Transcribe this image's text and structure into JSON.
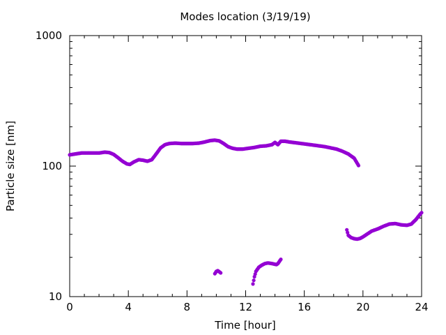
{
  "chart_data": {
    "type": "scatter",
    "title": "Modes location (3/19/19)",
    "xlabel": "Time [hour]",
    "ylabel": "Particle size [nm]",
    "xlim": [
      0,
      24
    ],
    "ylim": [
      10,
      1000
    ],
    "yscale": "log",
    "grid": false,
    "legend": "none",
    "x_ticks": [
      "0",
      "4",
      "8",
      "12",
      "16",
      "20",
      "24"
    ],
    "y_ticks": [
      "10",
      "100",
      "1000"
    ],
    "marker_color": "#9400D3",
    "series": [
      {
        "points": [
          [
            0.0,
            122
          ],
          [
            0.4,
            124
          ],
          [
            0.8,
            126
          ],
          [
            1.2,
            126
          ],
          [
            1.6,
            126
          ],
          [
            2.0,
            126
          ],
          [
            2.4,
            128
          ],
          [
            2.7,
            127
          ],
          [
            3.0,
            123
          ],
          [
            3.3,
            116
          ],
          [
            3.6,
            109
          ],
          [
            3.9,
            104
          ],
          [
            4.1,
            103
          ],
          [
            4.4,
            108
          ],
          [
            4.7,
            112
          ],
          [
            5.0,
            111
          ],
          [
            5.3,
            109
          ],
          [
            5.6,
            112
          ],
          [
            5.9,
            124
          ],
          [
            6.2,
            138
          ],
          [
            6.5,
            146
          ],
          [
            6.8,
            149
          ],
          [
            7.2,
            150
          ],
          [
            7.6,
            149
          ],
          [
            8.0,
            149
          ],
          [
            8.4,
            149
          ],
          [
            8.8,
            150
          ],
          [
            9.2,
            153
          ],
          [
            9.6,
            157
          ],
          [
            9.9,
            158
          ],
          [
            10.2,
            156
          ],
          [
            10.5,
            149
          ],
          [
            10.8,
            141
          ],
          [
            11.1,
            137
          ],
          [
            11.4,
            135
          ],
          [
            11.8,
            135
          ],
          [
            12.2,
            137
          ],
          [
            12.6,
            139
          ],
          [
            13.0,
            142
          ],
          [
            13.4,
            143
          ],
          [
            13.8,
            146
          ],
          [
            14.0,
            152
          ],
          [
            14.2,
            146
          ],
          [
            14.4,
            155
          ],
          [
            14.7,
            155
          ],
          [
            15.0,
            153
          ],
          [
            15.4,
            151
          ],
          [
            15.8,
            149
          ],
          [
            16.2,
            147
          ],
          [
            16.6,
            145
          ],
          [
            17.0,
            143
          ],
          [
            17.4,
            141
          ],
          [
            17.8,
            138
          ],
          [
            18.2,
            135
          ],
          [
            18.6,
            130
          ],
          [
            19.0,
            124
          ],
          [
            19.4,
            115
          ],
          [
            19.7,
            101
          ]
        ]
      },
      {
        "points": [
          [
            9.9,
            15.0
          ],
          [
            10.0,
            15.6
          ],
          [
            10.1,
            15.8
          ],
          [
            10.2,
            15.5
          ],
          [
            10.3,
            15.2
          ]
        ]
      },
      {
        "points": [
          [
            12.5,
            12.5
          ],
          [
            12.6,
            14.2
          ],
          [
            12.7,
            15.6
          ],
          [
            12.9,
            16.8
          ],
          [
            13.1,
            17.4
          ],
          [
            13.3,
            17.9
          ],
          [
            13.5,
            18.1
          ],
          [
            13.7,
            18.0
          ],
          [
            13.9,
            17.8
          ],
          [
            14.1,
            17.6
          ],
          [
            14.2,
            17.9
          ],
          [
            14.3,
            18.6
          ],
          [
            14.4,
            19.3
          ]
        ]
      },
      {
        "points": [
          [
            18.9,
            32.5
          ],
          [
            19.0,
            29.5
          ],
          [
            19.2,
            28.3
          ],
          [
            19.4,
            27.8
          ],
          [
            19.6,
            27.6
          ],
          [
            19.8,
            27.9
          ],
          [
            20.0,
            28.7
          ],
          [
            20.3,
            30.2
          ],
          [
            20.6,
            31.8
          ],
          [
            21.0,
            33.0
          ],
          [
            21.4,
            34.6
          ],
          [
            21.8,
            36.0
          ],
          [
            22.2,
            36.3
          ],
          [
            22.6,
            35.5
          ],
          [
            23.0,
            35.2
          ],
          [
            23.3,
            36.0
          ],
          [
            23.6,
            38.8
          ],
          [
            23.9,
            42.8
          ],
          [
            24.0,
            44.0
          ]
        ]
      }
    ]
  }
}
